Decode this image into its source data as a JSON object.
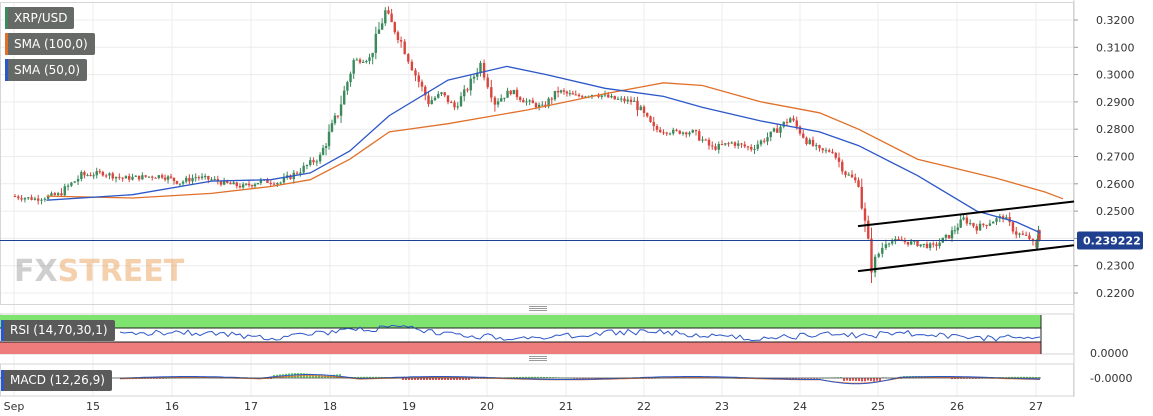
{
  "chart_data": {
    "type": "candlestick",
    "symbol": "XRP/USD",
    "last_price": "0.239222",
    "ylim": [
      0.217,
      0.3265
    ],
    "yticks": [
      "0.3200",
      "0.3100",
      "0.3000",
      "0.2900",
      "0.2800",
      "0.2700",
      "0.2600",
      "0.2500",
      "0.2400",
      "0.2300",
      "0.2200"
    ],
    "xticks": [
      "Sep",
      "15",
      "16",
      "17",
      "18",
      "19",
      "20",
      "21",
      "22",
      "23",
      "24",
      "25",
      "26",
      "27"
    ],
    "indicators": [
      {
        "name": "SMA (100,0)",
        "color": "#e0702a"
      },
      {
        "name": "SMA (50,0)",
        "color": "#2c57c8"
      }
    ],
    "anchors": [
      [
        "Sep 14",
        0.2555
      ],
      [
        "Sep 14",
        0.2545
      ],
      [
        "Sep 14",
        0.256
      ],
      [
        "Sep 14",
        0.263
      ],
      [
        "Sep 15",
        0.264
      ],
      [
        "Sep 15",
        0.262
      ],
      [
        "Sep 15",
        0.2625
      ],
      [
        "Sep 15",
        0.263
      ],
      [
        "Sep 16",
        0.2605
      ],
      [
        "Sep 16",
        0.2625
      ],
      [
        "Sep 16",
        0.2615
      ],
      [
        "Sep 16",
        0.26
      ],
      [
        "Sep 16",
        0.259
      ],
      [
        "Sep 17",
        0.261
      ],
      [
        "Sep 17",
        0.2605
      ],
      [
        "Sep 17",
        0.265
      ],
      [
        "Sep 17",
        0.27
      ],
      [
        "Sep 18",
        0.286
      ],
      [
        "Sep 18",
        0.305
      ],
      [
        "Sep 18",
        0.306
      ],
      [
        "Sep 18",
        0.323
      ],
      [
        "Sep 18",
        0.312
      ],
      [
        "Sep 19",
        0.3
      ],
      [
        "Sep 19",
        0.29
      ],
      [
        "Sep 19",
        0.293
      ],
      [
        "Sep 19",
        0.288
      ],
      [
        "Sep 19",
        0.295
      ],
      [
        "Sep 19",
        0.304
      ],
      [
        "Sep 20",
        0.29
      ],
      [
        "Sep 20",
        0.294
      ],
      [
        "Sep 20",
        0.29
      ],
      [
        "Sep 20",
        0.288
      ],
      [
        "Sep 20",
        0.294
      ],
      [
        "Sep 21",
        0.292
      ],
      [
        "Sep 21",
        0.293
      ],
      [
        "Sep 21",
        0.291
      ],
      [
        "Sep 21",
        0.29
      ],
      [
        "Sep 22",
        0.28
      ],
      [
        "Sep 22",
        0.279
      ],
      [
        "Sep 22",
        0.279
      ],
      [
        "Sep 22",
        0.273
      ],
      [
        "Sep 23",
        0.275
      ],
      [
        "Sep 23",
        0.273
      ],
      [
        "Sep 23",
        0.278
      ],
      [
        "Sep 23",
        0.284
      ],
      [
        "Sep 24",
        0.276
      ],
      [
        "Sep 24",
        0.272
      ],
      [
        "Sep 24",
        0.272
      ],
      [
        "Sep 24",
        0.264
      ],
      [
        "Sep 24",
        0.26
      ],
      [
        "Sep 24",
        0.23
      ],
      [
        "Sep 25",
        0.239
      ],
      [
        "Sep 25",
        0.239
      ],
      [
        "Sep 25",
        0.238
      ],
      [
        "Sep 25",
        0.237
      ],
      [
        "Sep 25",
        0.241
      ],
      [
        "Sep 26",
        0.247
      ],
      [
        "Sep 26",
        0.244
      ],
      [
        "Sep 26",
        0.246
      ],
      [
        "Sep 26",
        0.248
      ],
      [
        "Sep 26",
        0.242
      ],
      [
        "Sep 26",
        0.24
      ],
      [
        "Sep 27",
        0.236
      ],
      [
        "Sep 27",
        0.24
      ],
      [
        "Sep 27",
        0.244
      ],
      [
        "Sep 27",
        0.2392
      ]
    ],
    "sma50": [
      [
        "Sep 14",
        0.254
      ],
      [
        "Sep 15",
        0.256
      ],
      [
        "Sep 16",
        0.261
      ],
      [
        "Sep 17",
        0.2615
      ],
      [
        "Sep 17",
        0.264
      ],
      [
        "Sep 18",
        0.272
      ],
      [
        "Sep 18",
        0.285
      ],
      [
        "Sep 19",
        0.298
      ],
      [
        "Sep 20",
        0.303
      ],
      [
        "Sep 20",
        0.3
      ],
      [
        "Sep 21",
        0.295
      ],
      [
        "Sep 22",
        0.292
      ],
      [
        "Sep 22",
        0.288
      ],
      [
        "Sep 23",
        0.283
      ],
      [
        "Sep 24",
        0.279
      ],
      [
        "Sep 24",
        0.274
      ],
      [
        "Sep 25",
        0.263
      ],
      [
        "Sep 26",
        0.25
      ],
      [
        "Sep 26",
        0.246
      ],
      [
        "Sep 27",
        0.242
      ]
    ],
    "sma100": [
      [
        "Sep 14",
        0.2555
      ],
      [
        "Sep 15",
        0.2548
      ],
      [
        "Sep 16",
        0.2565
      ],
      [
        "Sep 17",
        0.259
      ],
      [
        "Sep 17",
        0.2615
      ],
      [
        "Sep 18",
        0.269
      ],
      [
        "Sep 18",
        0.279
      ],
      [
        "Sep 19",
        0.282
      ],
      [
        "Sep 20",
        0.287
      ],
      [
        "Sep 21",
        0.293
      ],
      [
        "Sep 22",
        0.297
      ],
      [
        "Sep 22",
        0.296
      ],
      [
        "Sep 23",
        0.29
      ],
      [
        "Sep 24",
        0.286
      ],
      [
        "Sep 24",
        0.28
      ],
      [
        "Sep 25",
        0.269
      ],
      [
        "Sep 26",
        0.262
      ],
      [
        "Sep 27",
        0.257
      ],
      [
        "Sep 27",
        0.2545
      ]
    ],
    "channel": {
      "upper": [
        [
          "Sep 24",
          0.2445
        ],
        [
          "Sep 27",
          0.2535
        ]
      ],
      "lower": [
        [
          "Sep 24",
          0.228
        ],
        [
          "Sep 27",
          0.2375
        ]
      ],
      "color": "#000000"
    },
    "rsi": {
      "name": "RSI (14,70,30,1)",
      "overbought": 70,
      "oversold": 30,
      "upper_band_color": "#7fe36f",
      "lower_band_color": "#ef7c7c",
      "tick": "0.0000"
    },
    "macd": {
      "name": "MACD (12,26,9)",
      "tick": "-0.0000",
      "macd_color": "#2c57c8",
      "signal_color": "#e0702a",
      "hist_pos_color": "#5fd35f",
      "hist_neg_color": "#e05252"
    },
    "colors": {
      "up": "#3a8a5c",
      "down": "#d9453d",
      "sma50": "#2c57c8",
      "sma100": "#e0702a",
      "price_line": "#1f3f8f"
    }
  },
  "labels": {
    "symbol": "XRP/USD",
    "sma100": "SMA (100,0)",
    "sma50": "SMA (50,0)",
    "rsi": "RSI (14,70,30,1)",
    "macd": "MACD (12,26,9)",
    "watermark_fx": "FX",
    "watermark_street": "STREET"
  }
}
